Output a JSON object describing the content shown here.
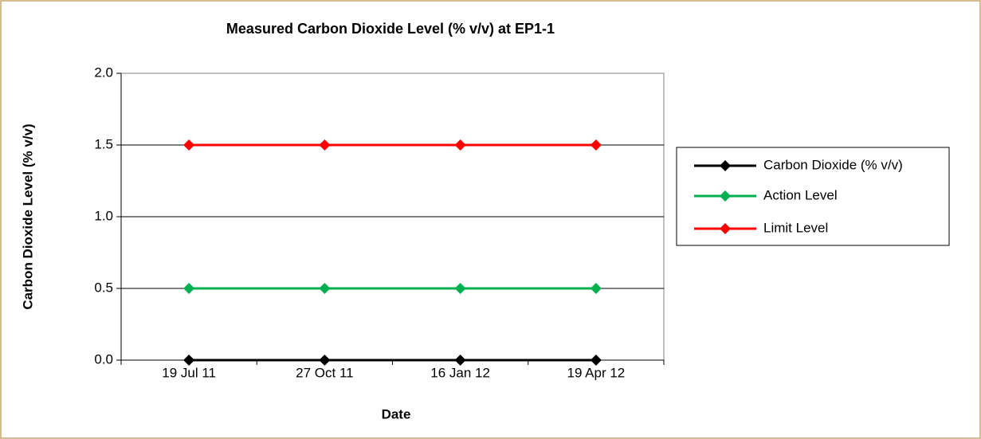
{
  "chart_data": {
    "type": "line",
    "title": "Measured Carbon Dioxide Level (% v/v) at EP1-1",
    "x_label": "Date",
    "y_label": "Carbon Dioxide Level (% v/v)",
    "categories": [
      "19 Jul 11",
      "27 Oct 11",
      "16 Jan 12",
      "19 Apr 12"
    ],
    "series": [
      {
        "name": "Carbon Dioxide (% v/v)",
        "color": "#000000",
        "values": [
          0,
          0,
          0,
          0
        ]
      },
      {
        "name": "Action Level",
        "color": "#00b050",
        "values": [
          0.5,
          0.5,
          0.5,
          0.5
        ]
      },
      {
        "name": "Limit Level",
        "color": "#ff0000",
        "values": [
          1.5,
          1.5,
          1.5,
          1.5
        ]
      }
    ],
    "ylim": [
      0,
      2
    ],
    "yticks": [
      {
        "value": 0,
        "label": "0.0"
      },
      0.5,
      {
        "value": 1,
        "label": "1.0"
      },
      1.5,
      {
        "value": 2,
        "label": "2.0"
      }
    ],
    "grid": true,
    "legend": "right"
  }
}
